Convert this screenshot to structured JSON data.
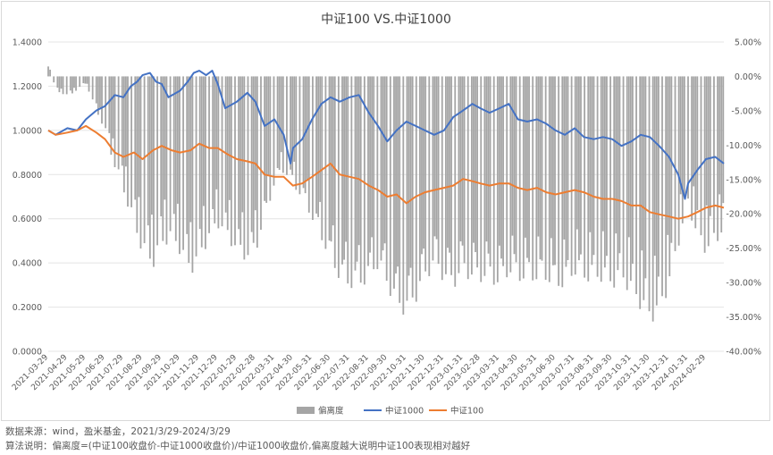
{
  "chart_data": {
    "type": "bar+line",
    "title": "中证100 VS.中证1000",
    "left_axis": {
      "min": 0,
      "max": 1.4,
      "step": 0.2,
      "ticks": [
        "0.0000",
        "0.2000",
        "0.4000",
        "0.6000",
        "0.8000",
        "1.0000",
        "1.2000",
        "1.4000"
      ]
    },
    "right_axis": {
      "min": -40,
      "max": 5,
      "step": 5,
      "ticks": [
        "-40.00%",
        "-35.00%",
        "-30.00%",
        "-25.00%",
        "-20.00%",
        "-15.00%",
        "-10.00%",
        "-5.00%",
        "0.00%",
        "5.00%"
      ]
    },
    "x_labels": [
      "2021-03-29",
      "2021-04-29",
      "2021-05-29",
      "2021-06-29",
      "2021-07-29",
      "2021-08-29",
      "2021-09-29",
      "2021-10-29",
      "2021-11-29",
      "2021-12-29",
      "2022-01-29",
      "2022-02-28",
      "2022-03-31",
      "2022-04-30",
      "2022-05-31",
      "2022-06-30",
      "2022-07-31",
      "2022-08-31",
      "2022-09-30",
      "2022-10-31",
      "2022-11-30",
      "2022-12-31",
      "2023-01-31",
      "2023-02-28",
      "2023-03-31",
      "2023-04-30",
      "2023-05-31",
      "2023-06-30",
      "2023-07-31",
      "2023-08-31",
      "2023-09-30",
      "2023-10-31",
      "2023-11-30",
      "2023-12-31",
      "2024-01-31",
      "2024-02-29"
    ],
    "x_end": "2024-03-29",
    "series": [
      {
        "name": "偏离度",
        "type": "bar",
        "axis": "right",
        "color": "#a5a5a5",
        "points": [
          [
            "2021-03-29",
            2
          ],
          [
            "2021-04-10",
            -2
          ],
          [
            "2021-04-29",
            -3
          ],
          [
            "2021-05-15",
            -2
          ],
          [
            "2021-05-29",
            -1
          ],
          [
            "2021-06-10",
            -4
          ],
          [
            "2021-06-29",
            -8
          ],
          [
            "2021-07-10",
            -12
          ],
          [
            "2021-07-29",
            -17
          ],
          [
            "2021-08-15",
            -22
          ],
          [
            "2021-08-29",
            -26
          ],
          [
            "2021-09-15",
            -28
          ],
          [
            "2021-09-29",
            -25
          ],
          [
            "2021-10-15",
            -24
          ],
          [
            "2021-10-29",
            -26
          ],
          [
            "2021-11-15",
            -29
          ],
          [
            "2021-11-29",
            -27
          ],
          [
            "2021-12-15",
            -24
          ],
          [
            "2021-12-29",
            -22
          ],
          [
            "2022-01-15",
            -24
          ],
          [
            "2022-01-29",
            -26
          ],
          [
            "2022-02-15",
            -27
          ],
          [
            "2022-02-28",
            -26
          ],
          [
            "2022-03-15",
            -21
          ],
          [
            "2022-03-31",
            -16
          ],
          [
            "2022-04-15",
            -14
          ],
          [
            "2022-04-30",
            -16
          ],
          [
            "2022-05-15",
            -18
          ],
          [
            "2022-05-31",
            -21
          ],
          [
            "2022-06-15",
            -24
          ],
          [
            "2022-06-30",
            -27
          ],
          [
            "2022-07-15",
            -30
          ],
          [
            "2022-07-31",
            -31
          ],
          [
            "2022-08-15",
            -31
          ],
          [
            "2022-08-31",
            -30
          ],
          [
            "2022-09-15",
            -28
          ],
          [
            "2022-09-30",
            -31
          ],
          [
            "2022-10-15",
            -34
          ],
          [
            "2022-10-31",
            -35
          ],
          [
            "2022-11-15",
            -33
          ],
          [
            "2022-11-30",
            -30
          ],
          [
            "2022-12-15",
            -28
          ],
          [
            "2022-12-31",
            -30
          ],
          [
            "2023-01-15",
            -31
          ],
          [
            "2023-01-31",
            -29
          ],
          [
            "2023-02-15",
            -30
          ],
          [
            "2023-02-28",
            -30
          ],
          [
            "2023-03-15",
            -30
          ],
          [
            "2023-03-31",
            -31
          ],
          [
            "2023-04-15",
            -29
          ],
          [
            "2023-04-30",
            -30
          ],
          [
            "2023-05-15",
            -30
          ],
          [
            "2023-05-31",
            -30
          ],
          [
            "2023-06-15",
            -30
          ],
          [
            "2023-06-30",
            -31
          ],
          [
            "2023-07-15",
            -31
          ],
          [
            "2023-07-31",
            -29
          ],
          [
            "2023-08-15",
            -30
          ],
          [
            "2023-08-31",
            -30
          ],
          [
            "2023-09-15",
            -30
          ],
          [
            "2023-09-30",
            -31
          ],
          [
            "2023-10-15",
            -30
          ],
          [
            "2023-10-31",
            -32
          ],
          [
            "2023-11-15",
            -34
          ],
          [
            "2023-11-30",
            -36
          ],
          [
            "2023-12-15",
            -35
          ],
          [
            "2023-12-31",
            -31
          ],
          [
            "2024-01-15",
            -25
          ],
          [
            "2024-01-31",
            -19
          ],
          [
            "2024-02-15",
            -24
          ],
          [
            "2024-02-29",
            -26
          ],
          [
            "2024-03-29",
            -23
          ]
        ]
      },
      {
        "name": "中证1000",
        "type": "line",
        "axis": "left",
        "color": "#4472c4",
        "points": [
          [
            "2021-03-29",
            1.0
          ],
          [
            "2021-04-10",
            0.98
          ],
          [
            "2021-04-29",
            1.01
          ],
          [
            "2021-05-15",
            1.0
          ],
          [
            "2021-05-29",
            1.05
          ],
          [
            "2021-06-15",
            1.09
          ],
          [
            "2021-06-29",
            1.11
          ],
          [
            "2021-07-15",
            1.16
          ],
          [
            "2021-07-29",
            1.15
          ],
          [
            "2021-08-10",
            1.2
          ],
          [
            "2021-08-20",
            1.22
          ],
          [
            "2021-08-29",
            1.25
          ],
          [
            "2021-09-10",
            1.26
          ],
          [
            "2021-09-20",
            1.22
          ],
          [
            "2021-09-29",
            1.21
          ],
          [
            "2021-10-10",
            1.15
          ],
          [
            "2021-10-29",
            1.18
          ],
          [
            "2021-11-10",
            1.22
          ],
          [
            "2021-11-20",
            1.26
          ],
          [
            "2021-11-29",
            1.27
          ],
          [
            "2021-12-10",
            1.25
          ],
          [
            "2021-12-20",
            1.27
          ],
          [
            "2021-12-29",
            1.21
          ],
          [
            "2022-01-10",
            1.1
          ],
          [
            "2022-01-29",
            1.13
          ],
          [
            "2022-02-15",
            1.17
          ],
          [
            "2022-02-28",
            1.13
          ],
          [
            "2022-03-15",
            1.02
          ],
          [
            "2022-03-31",
            1.05
          ],
          [
            "2022-04-15",
            0.98
          ],
          [
            "2022-04-26",
            0.85
          ],
          [
            "2022-04-30",
            0.92
          ],
          [
            "2022-05-15",
            0.96
          ],
          [
            "2022-05-31",
            1.05
          ],
          [
            "2022-06-15",
            1.12
          ],
          [
            "2022-06-30",
            1.15
          ],
          [
            "2022-07-15",
            1.13
          ],
          [
            "2022-07-31",
            1.15
          ],
          [
            "2022-08-15",
            1.16
          ],
          [
            "2022-08-31",
            1.08
          ],
          [
            "2022-09-15",
            1.02
          ],
          [
            "2022-09-30",
            0.95
          ],
          [
            "2022-10-15",
            1.0
          ],
          [
            "2022-10-31",
            1.04
          ],
          [
            "2022-11-15",
            1.02
          ],
          [
            "2022-11-30",
            1.0
          ],
          [
            "2022-12-15",
            0.98
          ],
          [
            "2022-12-31",
            1.0
          ],
          [
            "2023-01-15",
            1.06
          ],
          [
            "2023-01-31",
            1.09
          ],
          [
            "2023-02-15",
            1.12
          ],
          [
            "2023-02-28",
            1.1
          ],
          [
            "2023-03-15",
            1.08
          ],
          [
            "2023-03-31",
            1.1
          ],
          [
            "2023-04-15",
            1.12
          ],
          [
            "2023-04-30",
            1.05
          ],
          [
            "2023-05-15",
            1.04
          ],
          [
            "2023-05-31",
            1.05
          ],
          [
            "2023-06-15",
            1.03
          ],
          [
            "2023-06-30",
            1.0
          ],
          [
            "2023-07-15",
            0.98
          ],
          [
            "2023-07-31",
            1.01
          ],
          [
            "2023-08-15",
            0.97
          ],
          [
            "2023-08-31",
            0.96
          ],
          [
            "2023-09-15",
            0.97
          ],
          [
            "2023-09-30",
            0.96
          ],
          [
            "2023-10-15",
            0.93
          ],
          [
            "2023-10-31",
            0.95
          ],
          [
            "2023-11-15",
            0.98
          ],
          [
            "2023-11-30",
            0.97
          ],
          [
            "2023-12-15",
            0.93
          ],
          [
            "2023-12-31",
            0.88
          ],
          [
            "2024-01-15",
            0.8
          ],
          [
            "2024-01-26",
            0.69
          ],
          [
            "2024-01-31",
            0.76
          ],
          [
            "2024-02-15",
            0.82
          ],
          [
            "2024-02-29",
            0.87
          ],
          [
            "2024-03-15",
            0.88
          ],
          [
            "2024-03-29",
            0.85
          ]
        ]
      },
      {
        "name": "中证100",
        "type": "line",
        "axis": "left",
        "color": "#ed7d31",
        "points": [
          [
            "2021-03-29",
            1.0
          ],
          [
            "2021-04-10",
            0.98
          ],
          [
            "2021-04-29",
            0.99
          ],
          [
            "2021-05-15",
            1.0
          ],
          [
            "2021-05-29",
            1.02
          ],
          [
            "2021-06-15",
            0.99
          ],
          [
            "2021-06-29",
            0.96
          ],
          [
            "2021-07-15",
            0.9
          ],
          [
            "2021-07-29",
            0.88
          ],
          [
            "2021-08-15",
            0.9
          ],
          [
            "2021-08-29",
            0.87
          ],
          [
            "2021-09-15",
            0.91
          ],
          [
            "2021-09-29",
            0.93
          ],
          [
            "2021-10-15",
            0.91
          ],
          [
            "2021-10-29",
            0.9
          ],
          [
            "2021-11-15",
            0.91
          ],
          [
            "2021-11-29",
            0.94
          ],
          [
            "2021-12-15",
            0.92
          ],
          [
            "2021-12-29",
            0.92
          ],
          [
            "2022-01-15",
            0.89
          ],
          [
            "2022-01-29",
            0.87
          ],
          [
            "2022-02-15",
            0.86
          ],
          [
            "2022-02-28",
            0.85
          ],
          [
            "2022-03-15",
            0.8
          ],
          [
            "2022-03-31",
            0.79
          ],
          [
            "2022-04-15",
            0.79
          ],
          [
            "2022-04-30",
            0.75
          ],
          [
            "2022-05-15",
            0.76
          ],
          [
            "2022-05-31",
            0.79
          ],
          [
            "2022-06-15",
            0.82
          ],
          [
            "2022-06-30",
            0.85
          ],
          [
            "2022-07-15",
            0.8
          ],
          [
            "2022-07-31",
            0.79
          ],
          [
            "2022-08-15",
            0.78
          ],
          [
            "2022-08-31",
            0.75
          ],
          [
            "2022-09-15",
            0.73
          ],
          [
            "2022-09-30",
            0.7
          ],
          [
            "2022-10-15",
            0.71
          ],
          [
            "2022-10-31",
            0.67
          ],
          [
            "2022-11-15",
            0.7
          ],
          [
            "2022-11-30",
            0.72
          ],
          [
            "2022-12-15",
            0.73
          ],
          [
            "2022-12-31",
            0.74
          ],
          [
            "2023-01-15",
            0.75
          ],
          [
            "2023-01-31",
            0.78
          ],
          [
            "2023-02-15",
            0.77
          ],
          [
            "2023-02-28",
            0.76
          ],
          [
            "2023-03-15",
            0.75
          ],
          [
            "2023-03-31",
            0.76
          ],
          [
            "2023-04-15",
            0.76
          ],
          [
            "2023-04-30",
            0.74
          ],
          [
            "2023-05-15",
            0.73
          ],
          [
            "2023-05-31",
            0.74
          ],
          [
            "2023-06-15",
            0.72
          ],
          [
            "2023-06-30",
            0.71
          ],
          [
            "2023-07-15",
            0.72
          ],
          [
            "2023-07-31",
            0.73
          ],
          [
            "2023-08-15",
            0.72
          ],
          [
            "2023-08-31",
            0.7
          ],
          [
            "2023-09-15",
            0.69
          ],
          [
            "2023-09-30",
            0.69
          ],
          [
            "2023-10-15",
            0.68
          ],
          [
            "2023-10-31",
            0.66
          ],
          [
            "2023-11-15",
            0.66
          ],
          [
            "2023-11-30",
            0.63
          ],
          [
            "2023-12-15",
            0.62
          ],
          [
            "2023-12-31",
            0.61
          ],
          [
            "2024-01-15",
            0.6
          ],
          [
            "2024-01-31",
            0.61
          ],
          [
            "2024-02-15",
            0.63
          ],
          [
            "2024-02-29",
            0.65
          ],
          [
            "2024-03-15",
            0.66
          ],
          [
            "2024-03-29",
            0.65
          ]
        ]
      }
    ],
    "legend_position": "bottom-center"
  },
  "notes": {
    "source": "数据来源：wind，盈米基金，2021/3/29-2024/3/29",
    "method": "算法说明：偏离度=(中证100收盘价-中证1000收盘价)/中证1000收盘价,偏离度越大说明中证100表现相对越好"
  }
}
